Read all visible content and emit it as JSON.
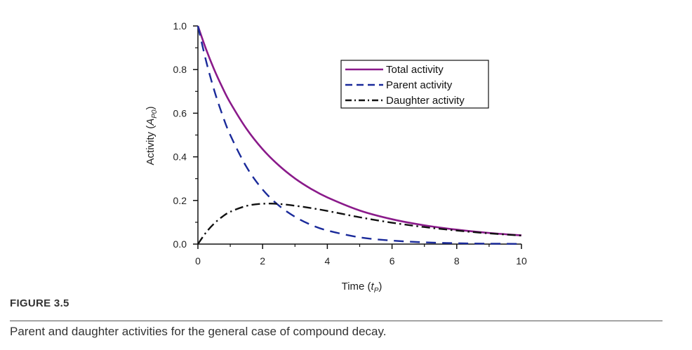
{
  "figure": {
    "label": "FIGURE 3.5",
    "caption": "Parent and daughter activities for the general case of compound decay."
  },
  "chart_data": {
    "type": "line",
    "xlabel": "Time (t_P)",
    "ylabel": "Activity (A_P0)",
    "xlim": [
      0,
      10
    ],
    "ylim": [
      0,
      1.0
    ],
    "x_ticks": [
      "0",
      "2",
      "4",
      "6",
      "8",
      "10"
    ],
    "y_ticks": [
      "0.0",
      "0.2",
      "0.4",
      "0.6",
      "0.8",
      "1.0"
    ],
    "grid": false,
    "legend_position": "top-right",
    "x": [
      0,
      0.25,
      0.5,
      0.75,
      1,
      1.5,
      2,
      2.5,
      3,
      3.5,
      4,
      5,
      6,
      7,
      8,
      9,
      10
    ],
    "series": [
      {
        "name": "Total activity",
        "color": "#8a1a8a",
        "dash": "solid",
        "values": [
          1.0,
          0.894,
          0.801,
          0.72,
          0.648,
          0.529,
          0.435,
          0.361,
          0.301,
          0.253,
          0.214,
          0.154,
          0.114,
          0.086,
          0.066,
          0.051,
          0.04
        ]
      },
      {
        "name": "Parent activity",
        "color": "#1a2a9a",
        "dash": "dashed",
        "values": [
          1.0,
          0.841,
          0.707,
          0.595,
          0.5,
          0.354,
          0.25,
          0.177,
          0.125,
          0.088,
          0.0625,
          0.031,
          0.016,
          0.008,
          0.004,
          0.002,
          0.001
        ]
      },
      {
        "name": "Daughter activity",
        "color": "#111111",
        "dash": "dash-dot",
        "values": [
          0.0,
          0.053,
          0.094,
          0.125,
          0.148,
          0.175,
          0.185,
          0.184,
          0.176,
          0.165,
          0.152,
          0.123,
          0.098,
          0.078,
          0.062,
          0.049,
          0.039
        ]
      }
    ]
  }
}
